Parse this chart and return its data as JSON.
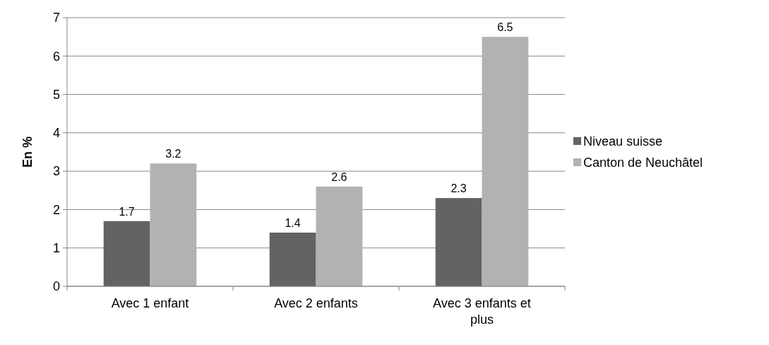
{
  "chart_data": {
    "type": "bar",
    "ylabel": "En %",
    "categories": [
      "Avec 1 enfant",
      "Avec 2 enfants",
      "Avec 3 enfants et plus"
    ],
    "series": [
      {
        "name": "Niveau suisse",
        "color": "#636363",
        "values": [
          1.7,
          1.4,
          2.3
        ]
      },
      {
        "name": "Canton de Neuchâtel",
        "color": "#b2b2b2",
        "values": [
          3.2,
          2.6,
          6.5
        ]
      }
    ],
    "ylim": [
      0,
      7
    ],
    "yticks": [
      0,
      1,
      2,
      3,
      4,
      5,
      6,
      7
    ],
    "grid": "y",
    "legend": "right",
    "data_labels": true
  }
}
